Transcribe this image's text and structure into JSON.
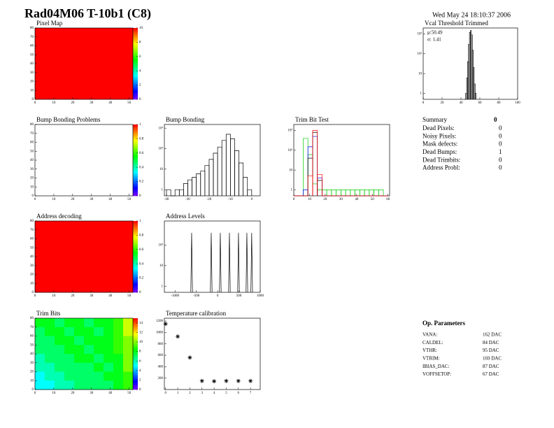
{
  "header": {
    "title": "Rad04M06 T-10b1 (C8)",
    "date": "Wed May 24 18:10:37 2006"
  },
  "summary": {
    "title": "Summary",
    "value": 0,
    "rows": [
      [
        "Dead Pixels:",
        0
      ],
      [
        "Noisy Pixels:",
        0
      ],
      [
        "Mask defects:",
        0
      ],
      [
        "Dead Bumps:",
        1
      ],
      [
        "Dead Trimbits:",
        0
      ],
      [
        "Address Probl:",
        0
      ]
    ]
  },
  "parameters": {
    "title": "Op. Parameters",
    "rows": [
      [
        "VANA:",
        "162 DAC"
      ],
      [
        "CALDEL:",
        "84 DAC"
      ],
      [
        "VTHR:",
        "95 DAC"
      ],
      [
        "VTRIM:",
        "169 DAC"
      ],
      [
        "IBIAS_DAC:",
        "87 DAC"
      ],
      [
        "VOFFSETOP:",
        "67 DAC"
      ]
    ]
  },
  "chart_data": [
    {
      "type": "heatmap",
      "title": "Pixel Map",
      "xlim": [
        0,
        52
      ],
      "xticks": [
        0,
        10,
        20,
        30,
        40,
        50
      ],
      "ylim": [
        0,
        80
      ],
      "yticks": [
        0,
        10,
        20,
        30,
        40,
        50,
        60,
        70,
        80
      ],
      "zlim": [
        0,
        10
      ],
      "zticks": [
        0,
        2,
        4,
        6,
        8,
        10
      ],
      "values": [
        [
          10,
          10,
          10,
          10,
          10
        ],
        [
          10,
          10,
          10,
          10,
          10
        ],
        [
          10,
          10,
          10,
          10,
          10
        ],
        [
          10,
          10,
          10,
          10,
          10
        ],
        [
          10,
          10,
          10,
          10,
          10
        ],
        [
          10,
          10,
          10,
          10,
          10
        ],
        [
          10,
          10,
          10,
          10,
          10
        ],
        [
          10,
          10,
          10,
          10,
          10
        ]
      ]
    },
    {
      "type": "histogram",
      "title": "Vcal Threshold Trimmed",
      "log_y": true,
      "xlim": [
        0,
        100
      ],
      "xticks": [
        0,
        20,
        40,
        60,
        80,
        100
      ],
      "ylim": [
        0.5,
        2000
      ],
      "yticks": [
        1,
        10,
        {
          "value": 100,
          "label": "10²"
        },
        {
          "value": 1000,
          "label": "10³"
        }
      ],
      "stats": [
        "μ:50.49",
        "σ: 1.41"
      ],
      "color": "#000000",
      "bins": [
        44,
        45,
        46,
        47,
        48,
        49,
        50,
        51,
        52,
        53,
        54,
        55,
        56
      ],
      "counts": [
        0,
        1,
        6,
        40,
        300,
        1200,
        1500,
        900,
        150,
        20,
        3,
        1
      ]
    },
    {
      "type": "heatmap",
      "title": "Bump Bonding Problems",
      "xlim": [
        0,
        52
      ],
      "xticks": [
        0,
        10,
        20,
        30,
        40,
        50
      ],
      "ylim": [
        0,
        80
      ],
      "yticks": [
        0,
        10,
        20,
        30,
        40,
        50,
        60,
        70,
        80
      ],
      "zlim": [
        0,
        1
      ],
      "zticks": [
        0,
        0.2,
        0.4,
        0.6,
        0.8,
        1
      ],
      "values": [
        [
          0,
          0,
          0,
          0,
          0
        ],
        [
          0,
          0,
          0,
          0,
          0
        ],
        [
          0,
          0,
          0,
          0,
          0
        ],
        [
          0,
          0,
          0,
          0,
          0
        ],
        [
          0,
          0,
          0,
          0,
          0
        ],
        [
          0,
          0,
          0,
          0,
          0
        ],
        [
          0,
          0,
          0,
          0,
          0
        ],
        [
          0,
          0,
          0,
          0,
          0
        ]
      ]
    },
    {
      "type": "histogram",
      "title": "Bump Bonding",
      "log_y": true,
      "xlim": [
        -41,
        4
      ],
      "xticks": [
        -40,
        -30,
        -20,
        -10,
        0
      ],
      "ylim": [
        0.5,
        1500
      ],
      "yticks": [
        1,
        10,
        {
          "value": 100,
          "label": "10²"
        },
        {
          "value": 1000,
          "label": "10³"
        }
      ],
      "color": "#000000",
      "bins": [
        -40,
        -38,
        -36,
        -34,
        -32,
        -30,
        -28,
        -26,
        -24,
        -22,
        -20,
        -18,
        -16,
        -14,
        -12,
        -10,
        -8,
        -6,
        -4,
        -2,
        0
      ],
      "counts": [
        1,
        0,
        1,
        1,
        2,
        3,
        4,
        6,
        8,
        15,
        30,
        60,
        120,
        250,
        500,
        300,
        80,
        20,
        4,
        1
      ]
    },
    {
      "type": "histogram",
      "title": "Trim Bit Test",
      "log_y": true,
      "xlim": [
        0,
        61
      ],
      "xticks": [
        0,
        10,
        20,
        30,
        40,
        50,
        60
      ],
      "ylim": [
        0.5,
        2000
      ],
      "yticks": [
        1,
        10,
        {
          "value": 100,
          "label": "10²"
        },
        {
          "value": 1000,
          "label": "10³"
        }
      ],
      "bins": [
        0,
        3,
        6,
        9,
        12,
        15,
        18,
        21,
        24,
        27,
        30,
        33,
        36,
        39,
        42,
        45,
        48,
        51,
        54,
        57,
        60
      ],
      "series": [
        {
          "color": "#00cc00",
          "counts": [
            0,
            0,
            400,
            60,
            2,
            1,
            1,
            1,
            1,
            1,
            1,
            1,
            1,
            1,
            1,
            1,
            1,
            1,
            1,
            0
          ]
        },
        {
          "color": "#0000ff",
          "counts": [
            0,
            0,
            1,
            150,
            500,
            4,
            0,
            0,
            0,
            0,
            0,
            0,
            0,
            0,
            0,
            0,
            0,
            0,
            0,
            0
          ]
        },
        {
          "color": "#000000",
          "counts": [
            0,
            0,
            0,
            40,
            800,
            3,
            0,
            0,
            0,
            0,
            0,
            0,
            0,
            0,
            0,
            0,
            0,
            0,
            0,
            0
          ]
        },
        {
          "color": "#ff0000",
          "counts": [
            0,
            0,
            0,
            5,
            1000,
            6,
            0,
            0,
            0,
            0,
            0,
            0,
            0,
            0,
            0,
            0,
            0,
            0,
            0,
            0
          ]
        }
      ]
    },
    {
      "type": "heatmap",
      "title": "Address decoding",
      "xlim": [
        0,
        52
      ],
      "xticks": [
        0,
        10,
        20,
        30,
        40,
        50
      ],
      "ylim": [
        0,
        80
      ],
      "yticks": [
        0,
        10,
        20,
        30,
        40,
        50,
        60,
        70,
        80
      ],
      "zlim": [
        0,
        1
      ],
      "zticks": [
        0,
        0.2,
        0.4,
        0.6,
        0.8,
        1
      ],
      "values": [
        [
          1,
          1,
          1,
          1,
          1
        ],
        [
          1,
          1,
          1,
          1,
          1
        ],
        [
          1,
          1,
          1,
          1,
          1
        ],
        [
          1,
          1,
          1,
          1,
          1
        ],
        [
          1,
          1,
          1,
          1,
          1
        ],
        [
          1,
          1,
          1,
          1,
          1
        ],
        [
          1,
          1,
          1,
          1,
          1
        ],
        [
          1,
          1,
          1,
          1,
          1
        ]
      ]
    },
    {
      "type": "spike",
      "title": "Address Levels",
      "log_y": true,
      "xlim": [
        -1250,
        1000
      ],
      "xticks": [
        -1000,
        -500,
        0,
        500,
        1000
      ],
      "ylim": [
        0.5,
        1500
      ],
      "yticks": [
        1,
        10,
        {
          "value": 100,
          "label": "10²"
        }
      ],
      "color": "#000000",
      "x": [
        -610,
        -150,
        63,
        277,
        490,
        687,
        800
      ],
      "values": [
        400,
        400,
        400,
        400,
        400,
        400,
        400
      ]
    },
    {
      "type": "heatmap",
      "title": "Trim Bits",
      "xlim": [
        0,
        52
      ],
      "xticks": [
        0,
        10,
        20,
        30,
        40,
        50
      ],
      "ylim": [
        0,
        80
      ],
      "yticks": [
        0,
        10,
        20,
        30,
        40,
        50,
        60,
        70,
        80
      ],
      "zlim": [
        0,
        15
      ],
      "zticks": [
        0,
        2,
        4,
        6,
        8,
        10,
        12,
        14
      ],
      "values": [
        [
          8,
          8,
          7,
          8,
          8,
          7,
          8,
          8,
          9,
          11
        ],
        [
          7,
          8,
          8,
          7,
          8,
          8,
          7,
          8,
          9,
          11
        ],
        [
          7,
          7,
          8,
          8,
          7,
          8,
          8,
          8,
          9,
          10
        ],
        [
          7,
          7,
          7,
          8,
          8,
          7,
          8,
          8,
          9,
          10
        ],
        [
          6,
          7,
          7,
          7,
          8,
          8,
          7,
          8,
          8,
          10
        ],
        [
          6,
          6,
          7,
          7,
          7,
          7,
          8,
          7,
          8,
          10
        ],
        [
          5,
          6,
          6,
          7,
          7,
          7,
          7,
          8,
          8,
          9
        ],
        [
          5,
          5,
          6,
          6,
          7,
          7,
          7,
          7,
          8,
          9
        ]
      ]
    },
    {
      "type": "scatter",
      "title": "Temperature calibration",
      "xlim": [
        -0.1,
        7.8
      ],
      "xticks": [
        0,
        1,
        2,
        3,
        4,
        5,
        6,
        7
      ],
      "ylim": [
        0,
        1250
      ],
      "yticks": [
        200,
        400,
        600,
        800,
        1000,
        1200
      ],
      "color": "#000000",
      "x": [
        0,
        1,
        2,
        3,
        4,
        5,
        6,
        7
      ],
      "values": [
        1150,
        930,
        560,
        150,
        145,
        150,
        150,
        150
      ]
    }
  ]
}
